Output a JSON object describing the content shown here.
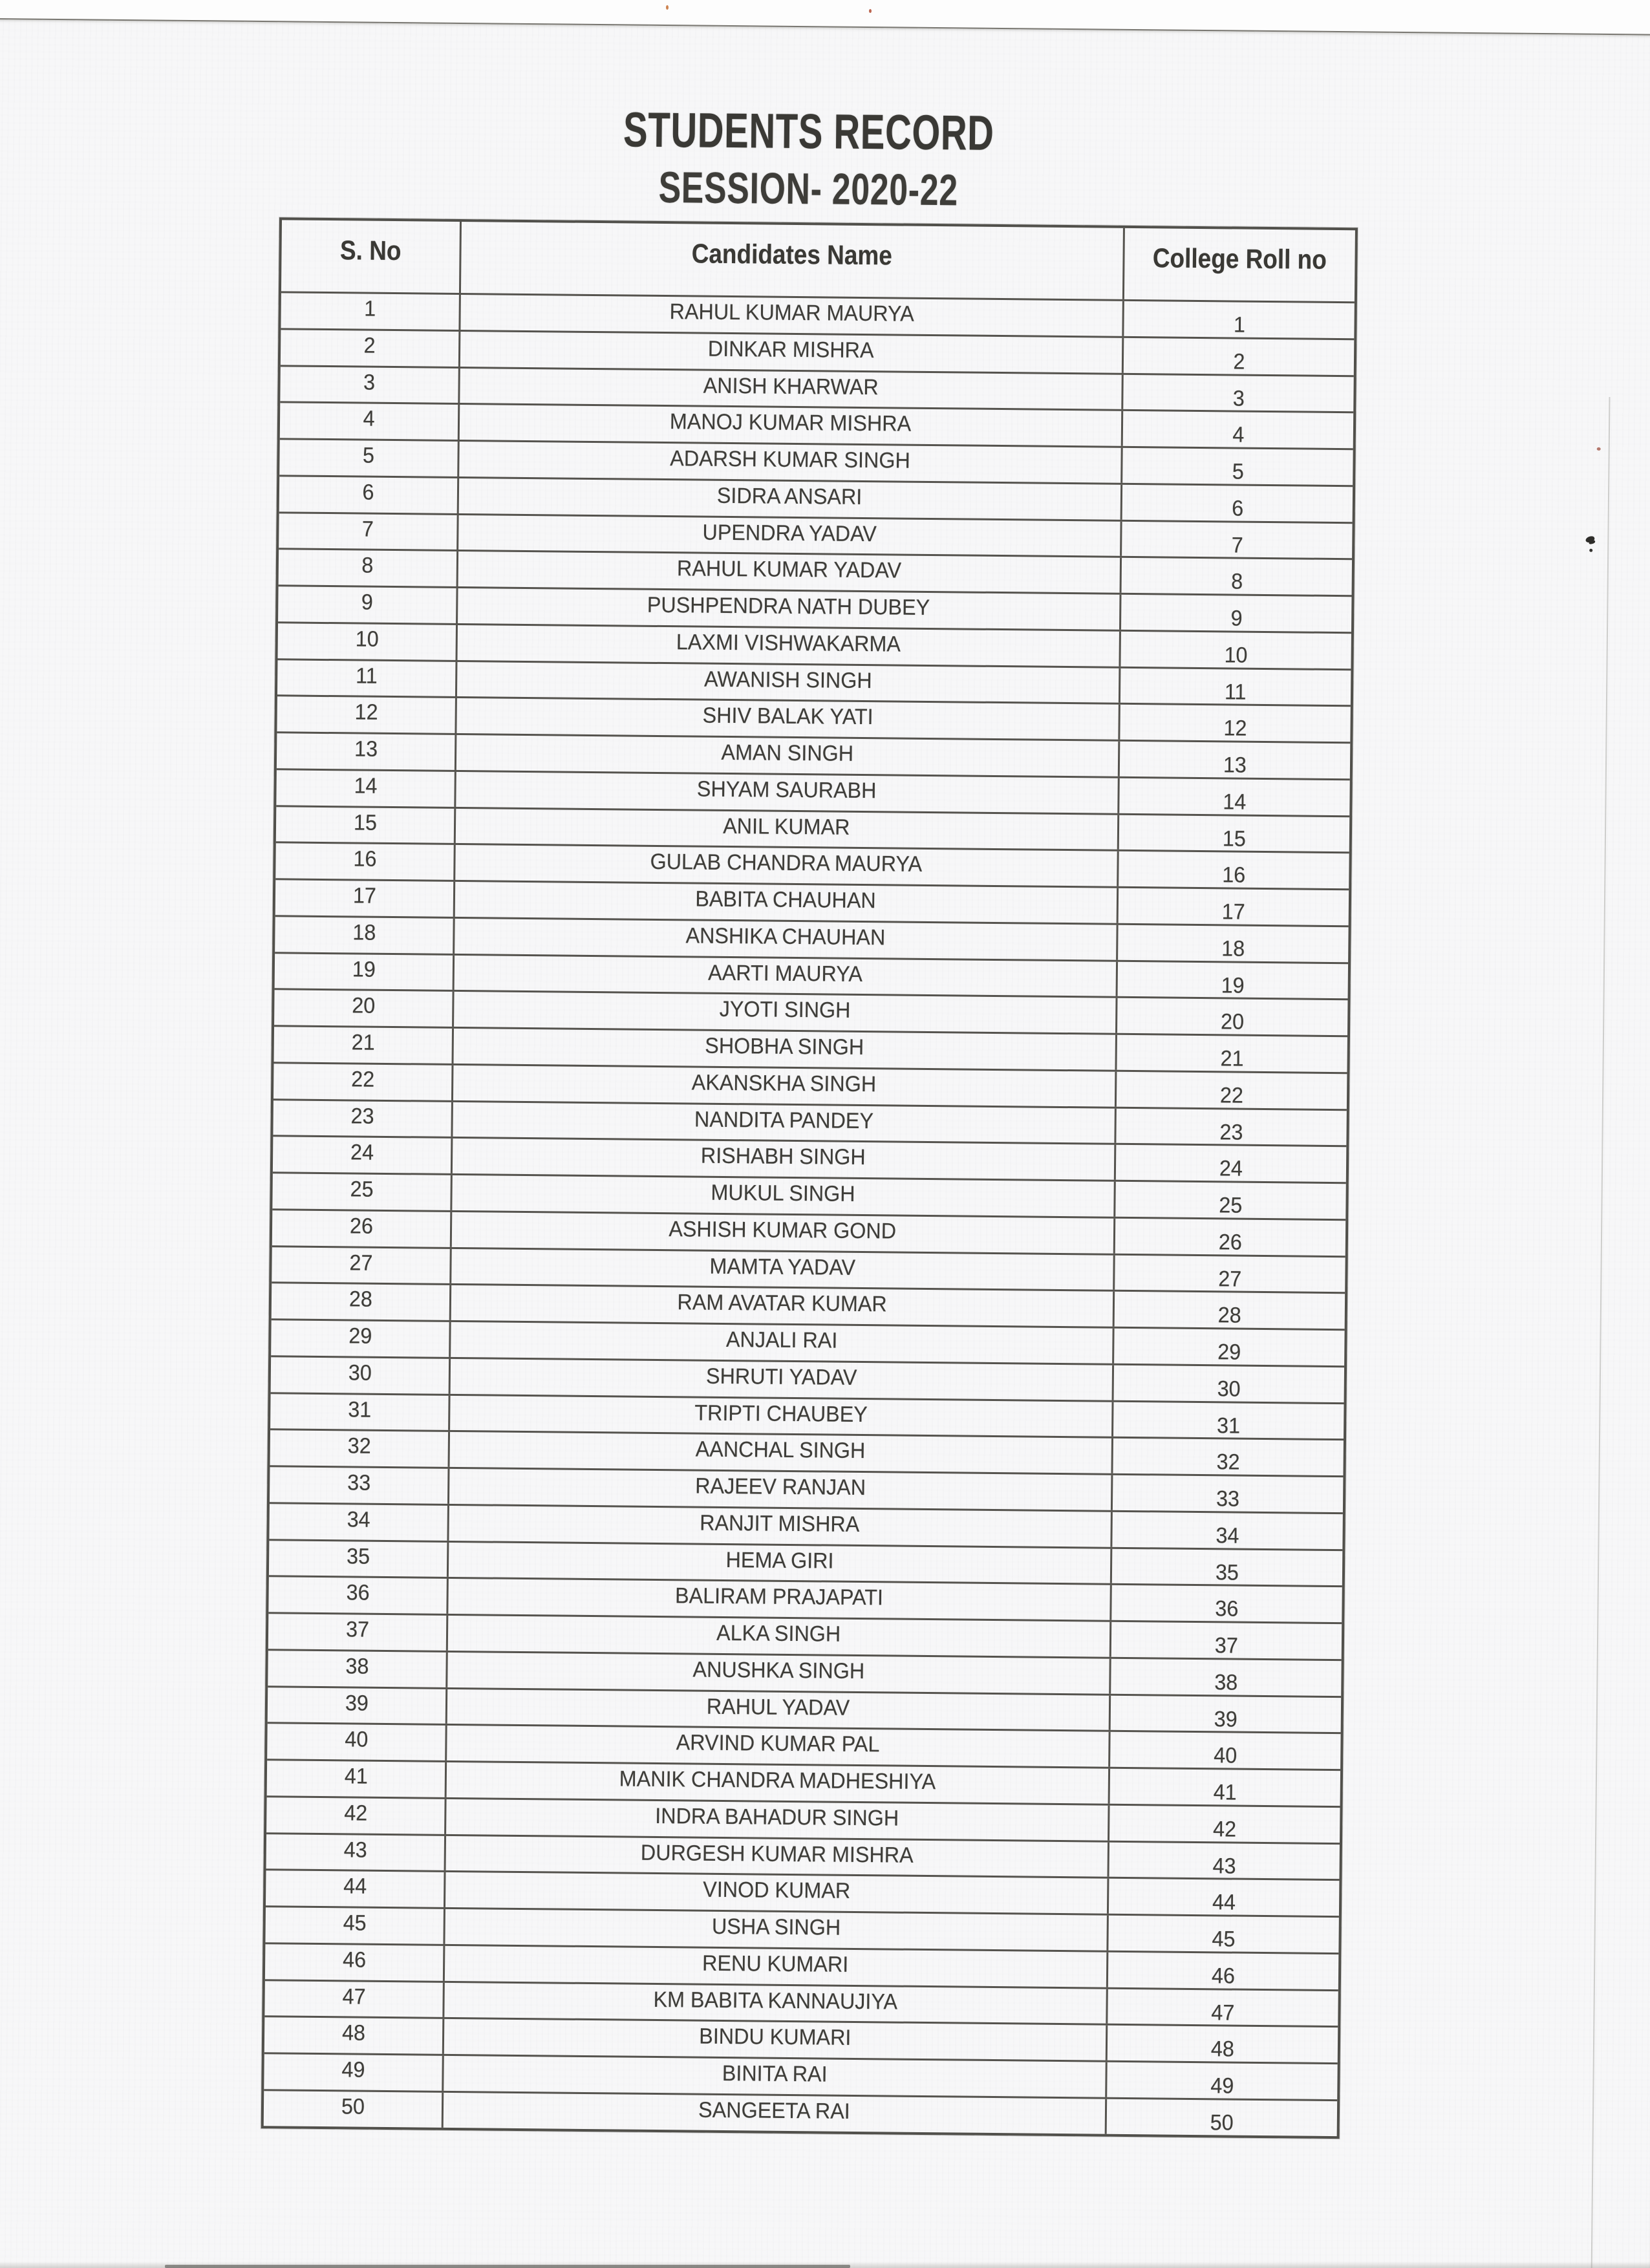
{
  "document": {
    "title": "STUDENTS RECORD",
    "subtitle": "SESSION- 2020-22",
    "colors": {
      "paper": "#f7f7f8",
      "ink": "#3e3d39",
      "table_line": "#55534e"
    },
    "table": {
      "headers": [
        "S. No",
        "Candidates Name",
        "College Roll no"
      ],
      "rows": [
        {
          "s_no": "1",
          "name": "RAHUL KUMAR MAURYA",
          "roll": "1"
        },
        {
          "s_no": "2",
          "name": "DINKAR MISHRA",
          "roll": "2"
        },
        {
          "s_no": "3",
          "name": "ANISH KHARWAR",
          "roll": "3"
        },
        {
          "s_no": "4",
          "name": "MANOJ KUMAR MISHRA",
          "roll": "4"
        },
        {
          "s_no": "5",
          "name": "ADARSH KUMAR SINGH",
          "roll": "5"
        },
        {
          "s_no": "6",
          "name": "SIDRA ANSARI",
          "roll": "6"
        },
        {
          "s_no": "7",
          "name": "UPENDRA YADAV",
          "roll": "7"
        },
        {
          "s_no": "8",
          "name": "RAHUL KUMAR YADAV",
          "roll": "8"
        },
        {
          "s_no": "9",
          "name": "PUSHPENDRA NATH DUBEY",
          "roll": "9"
        },
        {
          "s_no": "10",
          "name": "LAXMI VISHWAKARMA",
          "roll": "10"
        },
        {
          "s_no": "11",
          "name": "AWANISH SINGH",
          "roll": "11"
        },
        {
          "s_no": "12",
          "name": "SHIV BALAK YATI",
          "roll": "12"
        },
        {
          "s_no": "13",
          "name": "AMAN SINGH",
          "roll": "13"
        },
        {
          "s_no": "14",
          "name": "SHYAM SAURABH",
          "roll": "14"
        },
        {
          "s_no": "15",
          "name": "ANIL KUMAR",
          "roll": "15"
        },
        {
          "s_no": "16",
          "name": "GULAB CHANDRA MAURYA",
          "roll": "16"
        },
        {
          "s_no": "17",
          "name": "BABITA CHAUHAN",
          "roll": "17"
        },
        {
          "s_no": "18",
          "name": "ANSHIKA CHAUHAN",
          "roll": "18"
        },
        {
          "s_no": "19",
          "name": "AARTI MAURYA",
          "roll": "19"
        },
        {
          "s_no": "20",
          "name": "JYOTI SINGH",
          "roll": "20"
        },
        {
          "s_no": "21",
          "name": "SHOBHA SINGH",
          "roll": "21"
        },
        {
          "s_no": "22",
          "name": "AKANSKHA SINGH",
          "roll": "22"
        },
        {
          "s_no": "23",
          "name": "NANDITA PANDEY",
          "roll": "23"
        },
        {
          "s_no": "24",
          "name": "RISHABH SINGH",
          "roll": "24"
        },
        {
          "s_no": "25",
          "name": "MUKUL SINGH",
          "roll": "25"
        },
        {
          "s_no": "26",
          "name": "ASHISH KUMAR GOND",
          "roll": "26"
        },
        {
          "s_no": "27",
          "name": "MAMTA YADAV",
          "roll": "27"
        },
        {
          "s_no": "28",
          "name": "RAM AVATAR KUMAR",
          "roll": "28"
        },
        {
          "s_no": "29",
          "name": "ANJALI RAI",
          "roll": "29"
        },
        {
          "s_no": "30",
          "name": "SHRUTI YADAV",
          "roll": "30"
        },
        {
          "s_no": "31",
          "name": "TRIPTI CHAUBEY",
          "roll": "31"
        },
        {
          "s_no": "32",
          "name": "AANCHAL SINGH",
          "roll": "32"
        },
        {
          "s_no": "33",
          "name": "RAJEEV RANJAN",
          "roll": "33"
        },
        {
          "s_no": "34",
          "name": "RANJIT MISHRA",
          "roll": "34"
        },
        {
          "s_no": "35",
          "name": "HEMA GIRI",
          "roll": "35"
        },
        {
          "s_no": "36",
          "name": "BALIRAM PRAJAPATI",
          "roll": "36"
        },
        {
          "s_no": "37",
          "name": "ALKA SINGH",
          "roll": "37"
        },
        {
          "s_no": "38",
          "name": "ANUSHKA SINGH",
          "roll": "38"
        },
        {
          "s_no": "39",
          "name": "RAHUL YADAV",
          "roll": "39"
        },
        {
          "s_no": "40",
          "name": "ARVIND KUMAR PAL",
          "roll": "40"
        },
        {
          "s_no": "41",
          "name": "MANIK CHANDRA MADHESHIYA",
          "roll": "41"
        },
        {
          "s_no": "42",
          "name": "INDRA BAHADUR SINGH",
          "roll": "42"
        },
        {
          "s_no": "43",
          "name": "DURGESH KUMAR MISHRA",
          "roll": "43"
        },
        {
          "s_no": "44",
          "name": "VINOD KUMAR",
          "roll": "44"
        },
        {
          "s_no": "45",
          "name": "USHA SINGH",
          "roll": "45"
        },
        {
          "s_no": "46",
          "name": "RENU KUMARI",
          "roll": "46"
        },
        {
          "s_no": "47",
          "name": "KM BABITA KANNAUJIYA",
          "roll": "47"
        },
        {
          "s_no": "48",
          "name": "BINDU KUMARI",
          "roll": "48"
        },
        {
          "s_no": "49",
          "name": "BINITA RAI",
          "roll": "49"
        },
        {
          "s_no": "50",
          "name": "SANGEETA RAI",
          "roll": "50"
        }
      ]
    }
  }
}
